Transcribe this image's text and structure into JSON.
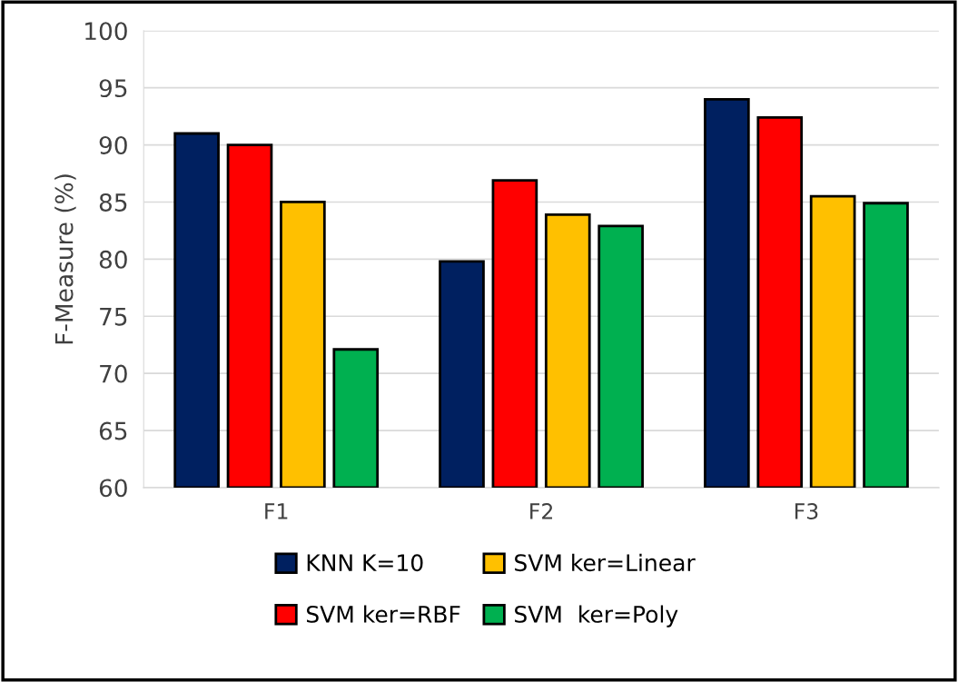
{
  "chart_data": {
    "type": "bar",
    "ylabel": "F-Measure (%)",
    "categories": [
      "F1",
      "F2",
      "F3"
    ],
    "series": [
      {
        "name": "KNN K=10",
        "color": "#002060",
        "values": [
          91.0,
          79.8,
          94.0
        ]
      },
      {
        "name": "SVM ker=RBF",
        "color": "#ff0000",
        "values": [
          90.0,
          86.9,
          92.4
        ]
      },
      {
        "name": "SVM ker=Linear",
        "color": "#ffc000",
        "values": [
          85.0,
          83.9,
          85.5
        ]
      },
      {
        "name": "SVM  ker=Poly",
        "color": "#00b050",
        "values": [
          72.1,
          82.9,
          84.9
        ]
      }
    ],
    "ylim": [
      60,
      100
    ],
    "yticks": [
      60,
      65,
      70,
      75,
      80,
      85,
      90,
      95,
      100
    ],
    "grid": "y",
    "legend": "bottom"
  }
}
